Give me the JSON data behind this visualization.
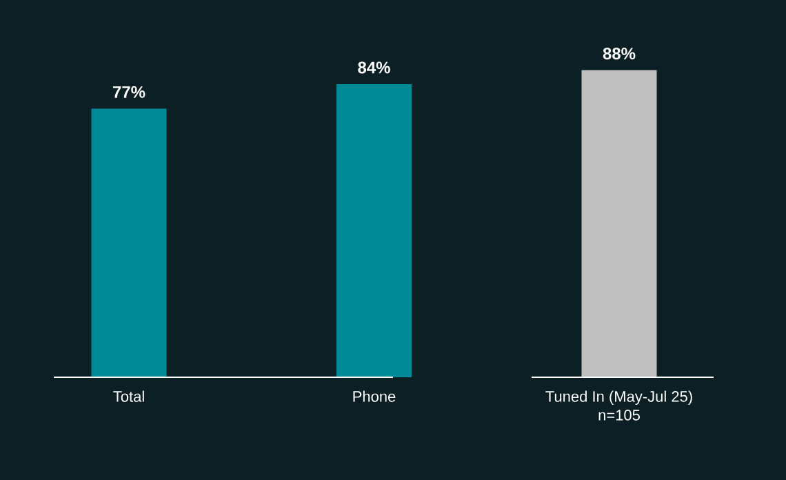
{
  "chart_data": {
    "type": "bar",
    "categories": [
      "Total",
      "Phone",
      "Tuned In (May-Jul 25) n=105"
    ],
    "values": [
      77,
      84,
      88
    ],
    "value_labels": [
      "77%",
      "84%",
      "88%"
    ],
    "colors": [
      "#008a96",
      "#008a96",
      "#bfbfbf"
    ]
  }
}
